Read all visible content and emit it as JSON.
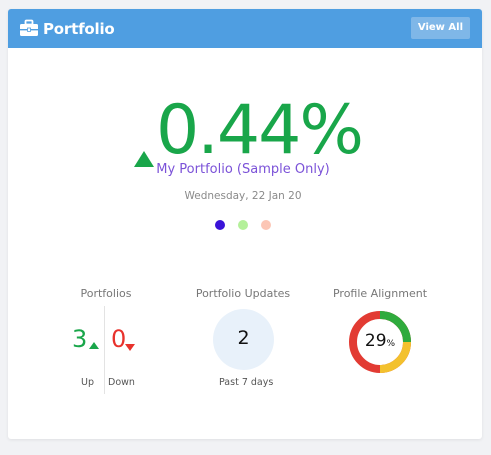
{
  "header": {
    "title": "Portfolio",
    "view_all_label": "View All",
    "icon": "briefcase-icon"
  },
  "performance": {
    "value": "0.44%",
    "direction": "up",
    "portfolio_name": "My Portfolio (Sample Only)",
    "date": "Wednesday, 22 Jan 20"
  },
  "carousel": {
    "dots": [
      {
        "color": "#3a13d8",
        "active": true
      },
      {
        "color": "#b4f09a",
        "active": false
      },
      {
        "color": "#fcc6b5",
        "active": false
      }
    ]
  },
  "stats": {
    "portfolios": {
      "label": "Portfolios",
      "up_count": "3",
      "down_count": "0",
      "up_label": "Up",
      "down_label": "Down"
    },
    "updates": {
      "label": "Portfolio Updates",
      "count": "2",
      "caption": "Past 7 days"
    },
    "alignment": {
      "label": "Profile Alignment",
      "value": "29",
      "unit": "%"
    }
  },
  "colors": {
    "header": "#4f9ee1",
    "positive": "#19a64a",
    "negative": "#e8322c",
    "accent_purple": "#7b52d8",
    "donut_red": "#e23b33",
    "donut_green": "#2fab3d",
    "donut_yellow": "#f3c12e"
  }
}
